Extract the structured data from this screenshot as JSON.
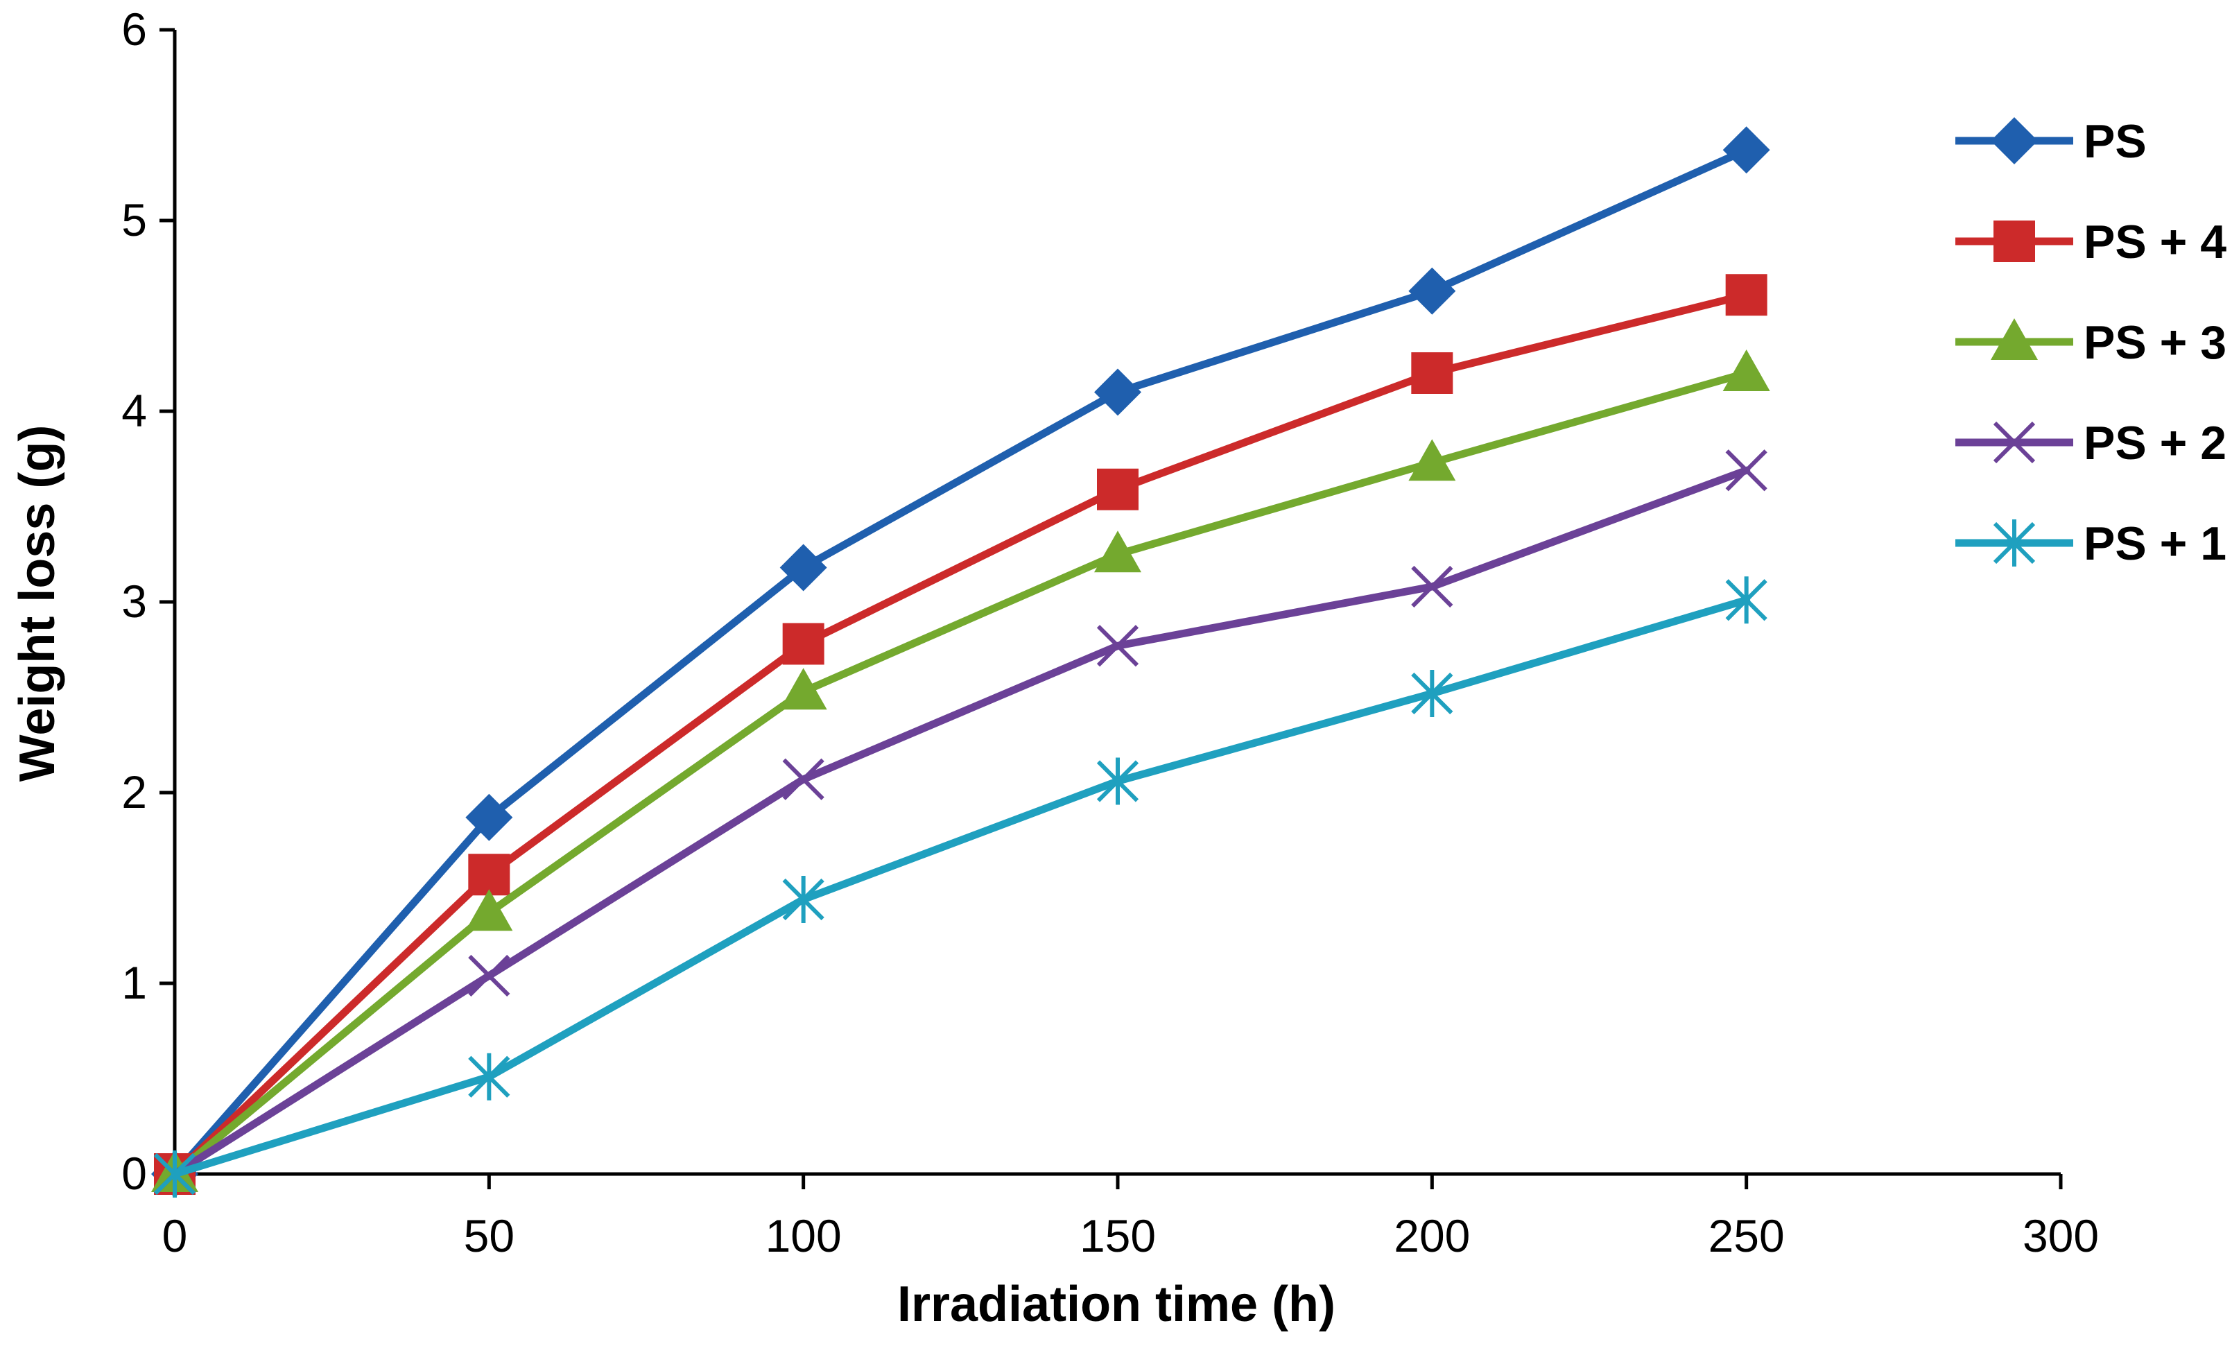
{
  "chart_data": {
    "type": "line",
    "title": "",
    "xlabel": "Irradiation time (h)",
    "ylabel": "Weight loss (g)",
    "xlim": [
      0,
      300
    ],
    "ylim": [
      0,
      6
    ],
    "xticks": [
      0,
      50,
      100,
      150,
      200,
      250,
      300
    ],
    "yticks": [
      0,
      1,
      2,
      3,
      4,
      5,
      6
    ],
    "xtick_labels": [
      "0",
      "50",
      "100",
      "150",
      "200",
      "250",
      "300"
    ],
    "ytick_labels": [
      "0",
      "1",
      "2",
      "3",
      "4",
      "5",
      "6"
    ],
    "grid": false,
    "legend_position": "right",
    "x": [
      0,
      50,
      100,
      150,
      200,
      250
    ],
    "series": [
      {
        "name": "PS",
        "color": "#1F5FAE",
        "marker": "diamond",
        "values": [
          0,
          1.87,
          3.18,
          4.1,
          4.63,
          5.37
        ]
      },
      {
        "name": "PS + 4",
        "color": "#CC2A2A",
        "marker": "square",
        "values": [
          0,
          1.57,
          2.78,
          3.59,
          4.2,
          4.61
        ]
      },
      {
        "name": "PS + 3",
        "color": "#74A92E",
        "marker": "triangle",
        "values": [
          0,
          1.37,
          2.53,
          3.25,
          3.73,
          4.2
        ]
      },
      {
        "name": "PS + 2",
        "color": "#6B4197",
        "marker": "x",
        "values": [
          0,
          1.04,
          2.07,
          2.77,
          3.08,
          3.69
        ]
      },
      {
        "name": "PS + 1",
        "color": "#1FA0BF",
        "marker": "asterisk",
        "values": [
          0,
          0.51,
          1.44,
          2.06,
          2.52,
          3.01
        ]
      }
    ]
  }
}
